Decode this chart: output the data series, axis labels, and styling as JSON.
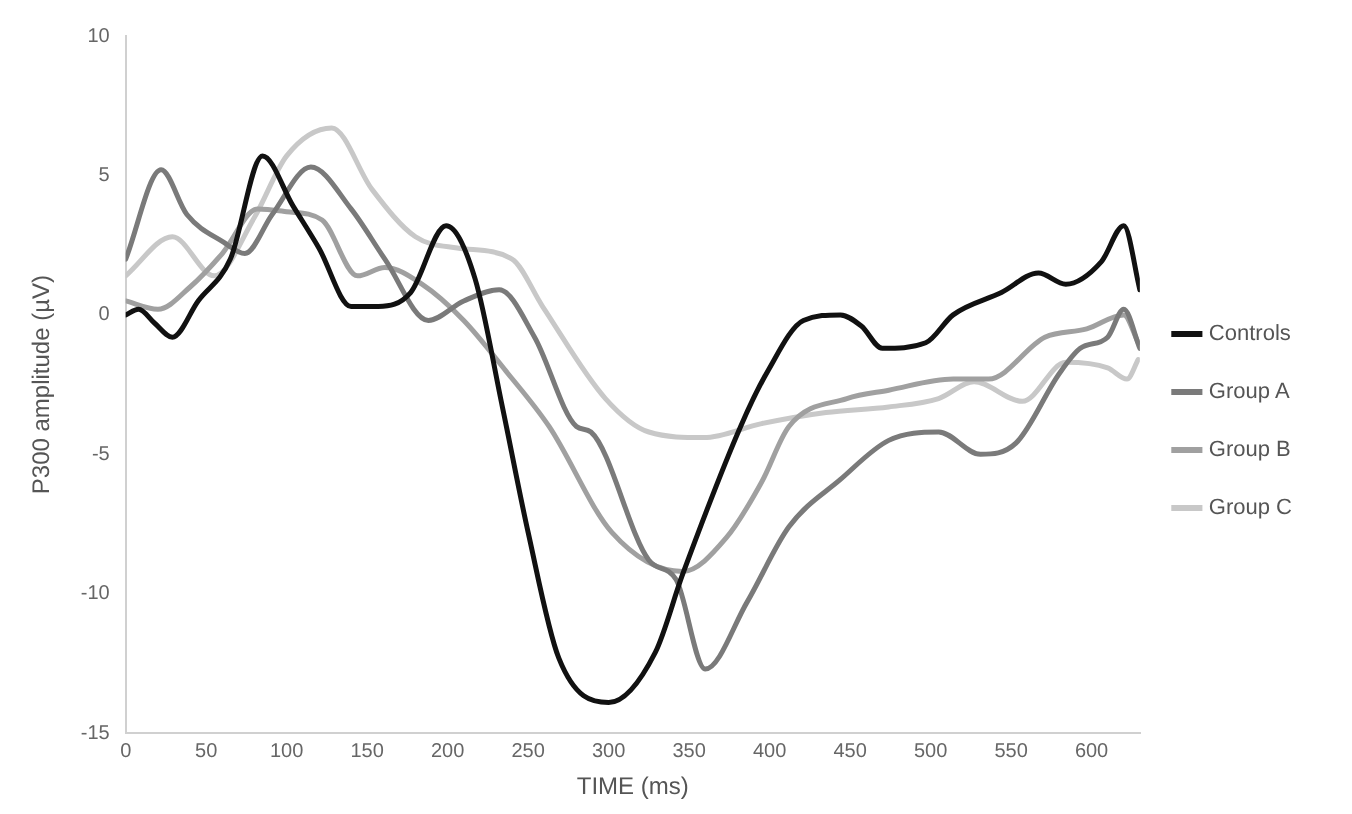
{
  "chart_data": {
    "type": "line",
    "xlabel": "TIME (ms)",
    "ylabel": "P300 amplitude (µV)",
    "xlim": [
      0,
      630
    ],
    "xticks": [
      0,
      50,
      100,
      150,
      200,
      250,
      300,
      350,
      400,
      450,
      500,
      550,
      600
    ],
    "ylim": [
      -15,
      10
    ],
    "yticks": [
      -15,
      -10,
      -5,
      0,
      5,
      10
    ],
    "grid": false,
    "legend": "right",
    "marker": "none",
    "line_style": "solid",
    "series": [
      {
        "name": "Controls",
        "color": "#111111",
        "x": [
          0,
          8,
          18,
          29,
          45,
          65,
          85,
          104,
          120,
          140,
          157,
          177,
          199,
          217,
          234,
          250,
          269,
          300,
          329,
          346,
          382,
          399,
          421,
          444,
          457,
          470,
          497,
          514,
          544,
          567,
          584,
          606,
          620,
          630
        ],
        "values": [
          0,
          0.2,
          -0.3,
          -0.8,
          0.5,
          2,
          5.7,
          3.9,
          2.4,
          0.3,
          0.3,
          0.8,
          3.2,
          1.3,
          -3.3,
          -7.8,
          -12.3,
          -13.9,
          -12.1,
          -9.3,
          -4,
          -2,
          -0.2,
          0,
          -0.4,
          -1.2,
          -1,
          0,
          0.8,
          1.5,
          1.1,
          1.9,
          3.2,
          0.9
        ]
      },
      {
        "name": "Group A",
        "color": "#7a7a7a",
        "x": [
          0,
          22,
          38,
          61,
          74,
          91,
          115,
          140,
          161,
          188,
          210,
          232,
          254,
          280,
          289,
          325,
          342,
          360,
          386,
          412,
          444,
          474,
          505,
          531,
          553,
          580,
          593,
          610,
          620,
          630
        ],
        "values": [
          2,
          5.2,
          3.6,
          2.6,
          2.2,
          3.6,
          5.3,
          3.8,
          2,
          -0.2,
          0.5,
          0.9,
          -0.8,
          -4,
          -4.2,
          -8.8,
          -9.5,
          -12.7,
          -10.3,
          -7.6,
          -5.9,
          -4.5,
          -4.2,
          -5,
          -4.6,
          -2.1,
          -1.2,
          -0.8,
          0.2,
          -1.2
        ]
      },
      {
        "name": "Group B",
        "color": "#a0a0a0",
        "x": [
          0,
          20,
          40,
          60,
          82,
          100,
          122,
          144,
          161,
          184,
          210,
          236,
          263,
          302,
          346,
          373,
          395,
          412,
          448,
          474,
          514,
          536,
          571,
          597,
          620,
          629
        ],
        "values": [
          0.5,
          0.2,
          1,
          2.2,
          3.8,
          3.7,
          3.4,
          1.4,
          1.7,
          1.1,
          -0.2,
          -2,
          -4,
          -7.8,
          -9.2,
          -8,
          -6,
          -4,
          -3,
          -2.7,
          -2.3,
          -2.3,
          -0.8,
          -0.5,
          0,
          -1
        ]
      },
      {
        "name": "Group C",
        "color": "#c8c8c8",
        "x": [
          0,
          29,
          55,
          80,
          100,
          128,
          153,
          180,
          206,
          240,
          259,
          298,
          325,
          359,
          395,
          435,
          474,
          505,
          527,
          557,
          584,
          610,
          622,
          629
        ],
        "values": [
          1.4,
          2.8,
          1.4,
          3.5,
          5.7,
          6.7,
          4.5,
          2.8,
          2.4,
          2,
          0.3,
          -3,
          -4.2,
          -4.4,
          -3.9,
          -3.5,
          -3.3,
          -3,
          -2.4,
          -3.1,
          -1.7,
          -1.9,
          -2.3,
          -1.6
        ]
      }
    ]
  }
}
